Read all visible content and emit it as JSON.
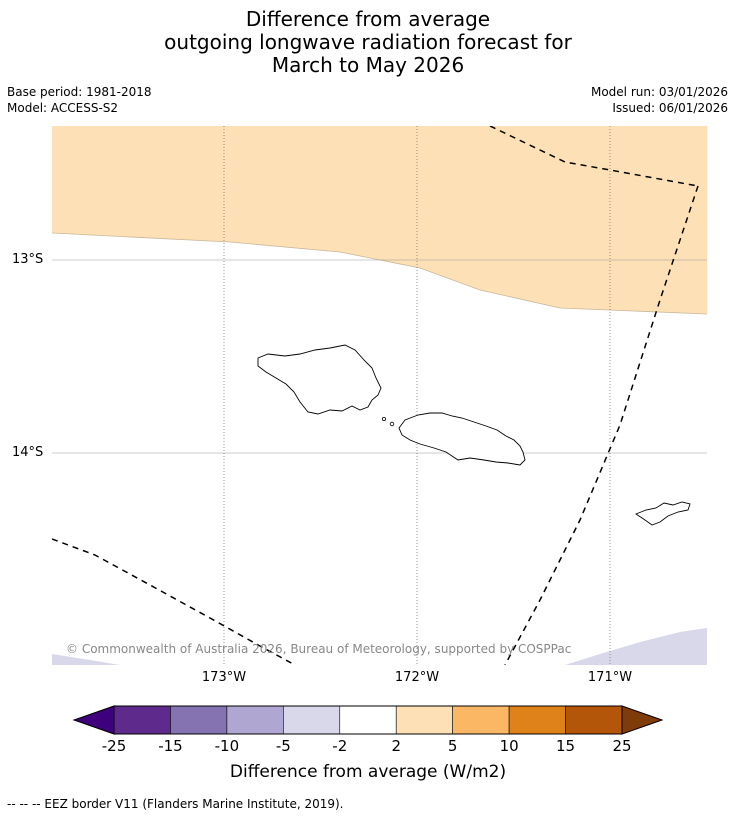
{
  "title": {
    "line1": "Difference from average",
    "line2": "outgoing longwave radiation forecast for",
    "line3": "March to May 2026"
  },
  "meta": {
    "base_period": "Base period: 1981-2018",
    "model": "Model: ACCESS-S2",
    "model_run": "Model run: 03/01/2026",
    "issued": "Issued: 06/01/2026"
  },
  "map": {
    "latitude_labels": [
      "13°S",
      "14°S"
    ],
    "longitude_labels": [
      "173°W",
      "172°W",
      "171°W"
    ],
    "copyright": "© Commonwealth of Australia 2026, Bureau of Meteorology, supported by COSPPac",
    "regions": [
      "Samoa (Savai'i and Upolu)",
      "American Samoa (Tutuila)"
    ],
    "fill_colors": {
      "positive_2_to_5": "#fde0b5",
      "negative_2_to_5": "#d8d8ea",
      "neutral": "#ffffff"
    }
  },
  "colorbar": {
    "label": "Difference from average (W/m2)",
    "ticks": [
      "-25",
      "-15",
      "-10",
      "-5",
      "-2",
      "2",
      "5",
      "10",
      "15",
      "25"
    ],
    "colors": [
      "#3f007d",
      "#5e2a8c",
      "#8473b0",
      "#b0a6d2",
      "#d8d8ea",
      "#ffffff",
      "#fde0b5",
      "#fbb763",
      "#e0821a",
      "#b3560a",
      "#7f3b08"
    ]
  },
  "legend": {
    "eez": "--  --  -- EEZ border V11 (Flanders Marine Institute, 2019)."
  }
}
